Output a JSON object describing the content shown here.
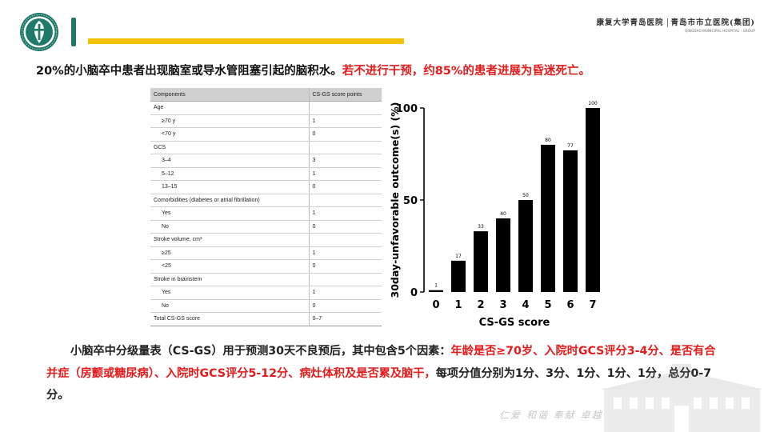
{
  "header": {
    "hospital_name": "康复大学青岛医院",
    "hospital_name2": "青岛市市立医院(集团)",
    "hospital_sub": "QINGDAO MUNICIPAL HOSPITAL · GROUP",
    "accent_color": "#1f7a6a",
    "line_color": "#f2c200"
  },
  "headline": {
    "black": "20%的小脑卒中患者出现脑室或导水管阻塞引起的脑积水。",
    "red": "若不进行干预，约85%的患者进展为昏迷死亡。",
    "red_color": "#e31b1b"
  },
  "table": {
    "header": [
      "Components",
      "CS-GS score points"
    ],
    "rows": [
      {
        "label": "Age",
        "value": "",
        "category": true
      },
      {
        "label": "≥70 y",
        "value": "1",
        "category": false
      },
      {
        "label": "<70 y",
        "value": "0",
        "category": false
      },
      {
        "label": "GCS",
        "value": "",
        "category": true
      },
      {
        "label": "3–4",
        "value": "3",
        "category": false
      },
      {
        "label": "5–12",
        "value": "1",
        "category": false
      },
      {
        "label": "13–15",
        "value": "0",
        "category": false
      },
      {
        "label": "Comorbidities (diabetes or atrial fibrillation)",
        "value": "",
        "category": true
      },
      {
        "label": "Yes",
        "value": "1",
        "category": false
      },
      {
        "label": "No",
        "value": "0",
        "category": false
      },
      {
        "label": "Stroke volume, cm³",
        "value": "",
        "category": true
      },
      {
        "label": "≥25",
        "value": "1",
        "category": false
      },
      {
        "label": "<25",
        "value": "0",
        "category": false
      },
      {
        "label": "Stroke in brainstem",
        "value": "",
        "category": true
      },
      {
        "label": "Yes",
        "value": "1",
        "category": false
      },
      {
        "label": "No",
        "value": "0",
        "category": false
      },
      {
        "label": "Total CS-GS score",
        "value": "0–7",
        "category": true,
        "total": true
      }
    ]
  },
  "chart_data": {
    "type": "bar",
    "categories": [
      "0",
      "1",
      "2",
      "3",
      "4",
      "5",
      "6",
      "7"
    ],
    "values": [
      1,
      17,
      33,
      40,
      50,
      80,
      77,
      100
    ],
    "data_labels": [
      "1",
      "17",
      "33",
      "40",
      "50",
      "80",
      "77",
      "100"
    ],
    "xlabel": "CS-GS score",
    "ylabel": "30day-unfavorable outcome(s) (%)",
    "ylim": [
      0,
      100
    ],
    "yticks": [
      "0",
      "50",
      "100"
    ],
    "bar_color": "#000000",
    "grid": false
  },
  "paragraph": {
    "part1": "小脑卒中分级量表（CS-GS）用于预测30天不良预后，其中包含5个因素：",
    "part2": "年龄是否≥70岁、入院时GCS评分3-4分、是否有合并症（房颤或糖尿病）、入院时GCS评分5-12分、病灶体积及是否累及脑干，",
    "part3": "每项分值分别为1分、3分、1分、1分、1分，总分0-7分。"
  },
  "watermark": {
    "motto": "仁爱 和谐 奉献 卓越"
  }
}
